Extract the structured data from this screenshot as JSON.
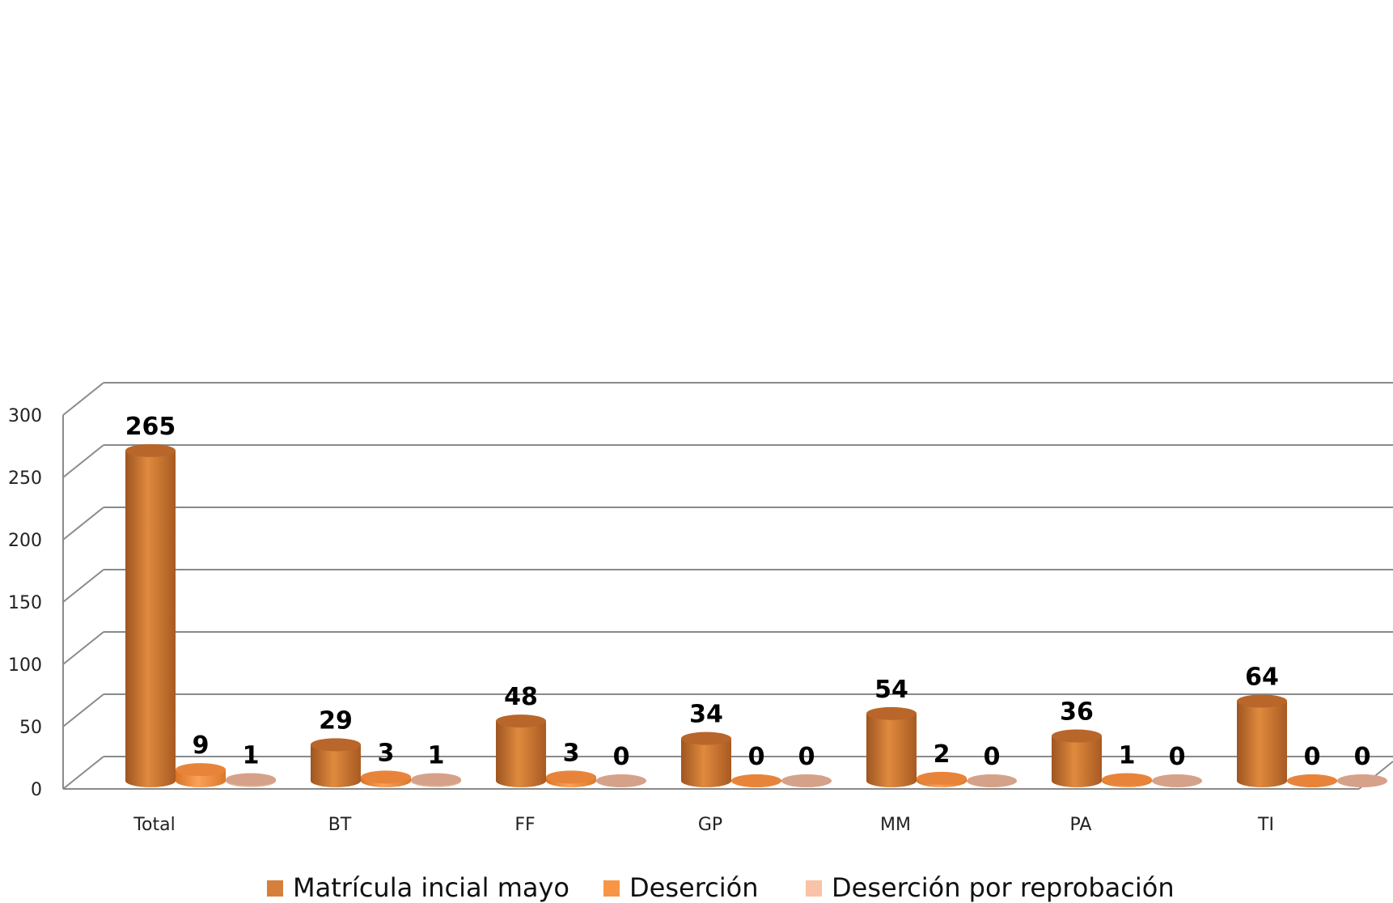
{
  "chart_data": {
    "type": "bar",
    "categories": [
      "Total",
      "BT",
      "FF",
      "GP",
      "MM",
      "PA",
      "TI"
    ],
    "series": [
      {
        "name": "Matrícula incial mayo",
        "values": [
          265,
          29,
          48,
          34,
          54,
          36,
          64
        ],
        "color": "#D4803A"
      },
      {
        "name": "Deserción",
        "values": [
          9,
          3,
          3,
          0,
          2,
          1,
          0
        ],
        "color": "#F79646"
      },
      {
        "name": "Deserción por reprobación",
        "values": [
          1,
          1,
          0,
          0,
          0,
          0,
          0
        ],
        "color": "#F8C3A6"
      }
    ],
    "y_ticks": [
      "0",
      "50",
      "100",
      "150",
      "200",
      "250",
      "300"
    ],
    "ylim": [
      0,
      300
    ],
    "grid": true,
    "legend": "bottom",
    "style": "3d-cylinder"
  }
}
